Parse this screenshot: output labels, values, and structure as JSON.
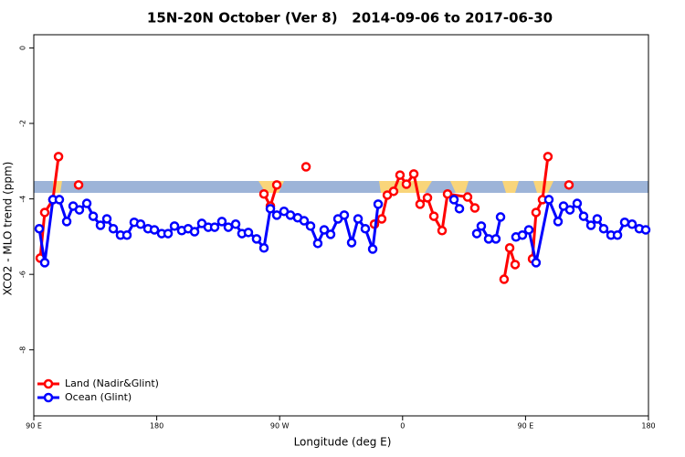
{
  "chart_data": {
    "type": "line",
    "title": "15N-20N October (Ver 8)   2014-09-06 to 2017-06-30",
    "x_label": "Longitude (deg E)",
    "y_label": "XCO2 - MLO trend (ppm)",
    "xlim": [
      90,
      540
    ],
    "ylim": [
      -9.75,
      0.35
    ],
    "xticks": [
      {
        "value": 90,
        "label": "90 E"
      },
      180,
      {
        "value": 270,
        "label": "90 W"
      },
      {
        "value": 360,
        "label": "0"
      },
      {
        "value": 450,
        "label": "90 E"
      },
      {
        "value": 540,
        "label": "180"
      }
    ],
    "yticks": [
      0,
      -2,
      -4,
      -6,
      -8
    ],
    "legend": "bottom-left",
    "series": [
      {
        "name": "Land (Nadir&Glint)",
        "color": "#ff0000",
        "x": [
          94.7,
          98.0,
          104.0,
          108.1,
          null,
          122.8,
          null,
          258.5,
          263.2,
          267.9,
          null,
          289.3,
          null,
          339.4,
          344.7,
          348.8,
          353.4,
          358.1,
          362.8,
          368.2,
          372.8,
          378.2,
          382.9,
          388.9,
          392.9,
          407.6,
          412.9,
          null,
          434.3,
          438.4,
          442.4,
          null,
          455.1,
          457.7,
          462.4,
          466.4,
          null,
          481.8
        ],
        "values": [
          -5.57,
          -4.36,
          -4.02,
          -2.88,
          null,
          -3.63,
          null,
          -3.87,
          -4.19,
          -3.63,
          null,
          -3.15,
          null,
          -4.67,
          -4.53,
          -3.9,
          -3.8,
          -3.37,
          -3.61,
          -3.34,
          -4.14,
          -3.97,
          -4.46,
          -4.84,
          -3.87,
          -3.95,
          -4.24,
          null,
          -6.13,
          -5.3,
          -5.74,
          null,
          -5.59,
          -4.36,
          -4.02,
          -2.88,
          null,
          -3.63
        ]
      },
      {
        "name": "Ocean (Glint)",
        "color": "#0000ff",
        "x": [
          94.0,
          98.0,
          104.0,
          108.7,
          114.1,
          118.8,
          123.4,
          128.8,
          133.5,
          138.8,
          143.5,
          148.2,
          153.5,
          158.2,
          163.5,
          168.2,
          173.6,
          178.3,
          183.6,
          188.3,
          193.0,
          198.3,
          203.0,
          207.7,
          213.0,
          217.7,
          222.4,
          227.7,
          232.4,
          237.8,
          242.4,
          247.1,
          253.1,
          258.5,
          263.2,
          267.9,
          273.2,
          277.9,
          283.2,
          287.9,
          292.6,
          297.9,
          302.6,
          307.3,
          312.7,
          317.3,
          322.7,
          327.4,
          332.7,
          338.1,
          342.1,
          null,
          397.6,
          401.6,
          null,
          414.3,
          417.6,
          423.0,
          428.3,
          431.7,
          null,
          443.0,
          447.7,
          452.4,
          457.7,
          467.1,
          473.8,
          477.8,
          482.5,
          487.8,
          492.5,
          497.9,
          502.5,
          507.2,
          512.6,
          517.3,
          522.6,
          528.0,
          533.3,
          538.0
        ],
        "values": [
          -4.79,
          -5.69,
          -4.02,
          -4.02,
          -4.6,
          -4.19,
          -4.29,
          -4.12,
          -4.46,
          -4.7,
          -4.53,
          -4.79,
          -4.96,
          -4.96,
          -4.62,
          -4.67,
          -4.79,
          -4.82,
          -4.92,
          -4.92,
          -4.72,
          -4.84,
          -4.79,
          -4.87,
          -4.65,
          -4.75,
          -4.75,
          -4.6,
          -4.75,
          -4.67,
          -4.92,
          -4.89,
          -5.06,
          -5.3,
          -4.26,
          -4.43,
          -4.33,
          -4.43,
          -4.5,
          -4.58,
          -4.72,
          -5.18,
          -4.82,
          -4.94,
          -4.53,
          -4.43,
          -5.16,
          -4.53,
          -4.79,
          -5.33,
          -4.14,
          null,
          -4.02,
          -4.26,
          null,
          -4.92,
          -4.72,
          -5.06,
          -5.06,
          -4.48,
          null,
          -5.01,
          -4.96,
          -4.82,
          -5.69,
          -4.02,
          -4.6,
          -4.19,
          -4.29,
          -4.12,
          -4.46,
          -4.7,
          -4.53,
          -4.79,
          -4.96,
          -4.96,
          -4.62,
          -4.67,
          -4.79,
          -4.82
        ]
      }
    ]
  }
}
